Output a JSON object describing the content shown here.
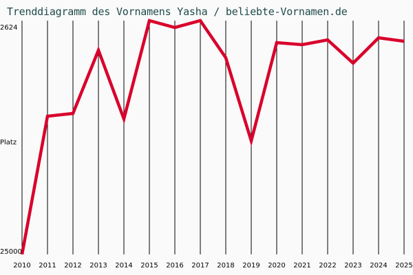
{
  "title": "Trenddiagramm des Vornamens Yasha / beliebte-Vornamen.de",
  "colors": {
    "background": "#fafafa",
    "line": "#d9002b",
    "grid": "#000000",
    "title": "#1e4a4a"
  },
  "chart_data": {
    "type": "line",
    "title": "Trenddiagramm des Vornamens Yasha / beliebte-Vornamen.de",
    "xlabel": "",
    "ylabel": "Platz",
    "y_inverted": true,
    "ylim": [
      25000,
      2624
    ],
    "y_tick_labels": [
      "2624",
      "Platz",
      "25000"
    ],
    "grid": {
      "vertical": true,
      "horizontal": false
    },
    "categories": [
      "2010",
      "2011",
      "2012",
      "2013",
      "2014",
      "2015",
      "2016",
      "2017",
      "2018",
      "2019",
      "2020",
      "2021",
      "2022",
      "2023",
      "2024",
      "2025"
    ],
    "series": [
      {
        "name": "Yasha",
        "values": [
          25000,
          11775,
          11510,
          5455,
          12035,
          2624,
          3280,
          2624,
          6180,
          14140,
          4730,
          4930,
          4465,
          6700,
          4270,
          4600
        ]
      }
    ]
  },
  "axis": {
    "top_label": "2624",
    "mid_label": "Platz",
    "bottom_label": "25000"
  }
}
